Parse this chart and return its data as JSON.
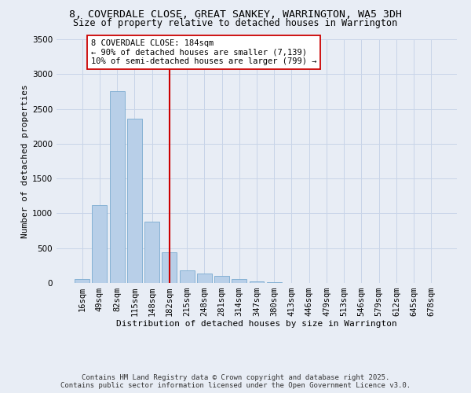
{
  "title1": "8, COVERDALE CLOSE, GREAT SANKEY, WARRINGTON, WA5 3DH",
  "title2": "Size of property relative to detached houses in Warrington",
  "xlabel": "Distribution of detached houses by size in Warrington",
  "ylabel": "Number of detached properties",
  "categories": [
    "16sqm",
    "49sqm",
    "82sqm",
    "115sqm",
    "148sqm",
    "182sqm",
    "215sqm",
    "248sqm",
    "281sqm",
    "314sqm",
    "347sqm",
    "380sqm",
    "413sqm",
    "446sqm",
    "479sqm",
    "513sqm",
    "546sqm",
    "579sqm",
    "612sqm",
    "645sqm",
    "678sqm"
  ],
  "values": [
    60,
    1120,
    2760,
    2360,
    880,
    440,
    185,
    140,
    100,
    55,
    20,
    10,
    5,
    3,
    2,
    1,
    1,
    0,
    0,
    0,
    0
  ],
  "bar_color": "#b8cfe8",
  "bar_edge_color": "#7aaad0",
  "vline_index": 5,
  "vline_color": "#cc0000",
  "annotation_text": "8 COVERDALE CLOSE: 184sqm\n← 90% of detached houses are smaller (7,139)\n10% of semi-detached houses are larger (799) →",
  "annotation_box_color": "#ffffff",
  "annotation_box_edge": "#cc0000",
  "ylim": [
    0,
    3500
  ],
  "yticks": [
    0,
    500,
    1000,
    1500,
    2000,
    2500,
    3000,
    3500
  ],
  "grid_color": "#c8d4e8",
  "bg_color": "#e8edf5",
  "footer_line1": "Contains HM Land Registry data © Crown copyright and database right 2025.",
  "footer_line2": "Contains public sector information licensed under the Open Government Licence v3.0.",
  "title1_fontsize": 9.5,
  "title2_fontsize": 8.5,
  "xlabel_fontsize": 8,
  "ylabel_fontsize": 8,
  "tick_fontsize": 7.5,
  "footer_fontsize": 6.5,
  "annotation_fontsize": 7.5
}
